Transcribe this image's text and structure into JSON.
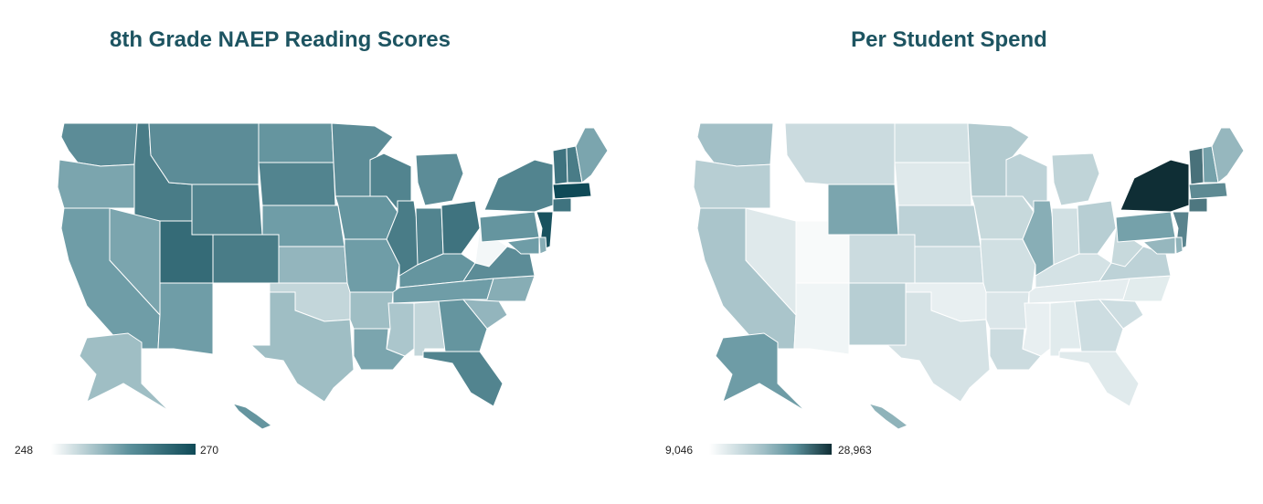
{
  "maps": [
    {
      "title": "8th Grade NAEP Reading Scores",
      "legend": {
        "min": "248",
        "max": "270",
        "low_color": "#ffffff",
        "high_color": "#0f4a57"
      },
      "states": {
        "WA": 262,
        "OR": 259,
        "CA": 260,
        "ID": 264,
        "NV": 259,
        "MT": 262,
        "WY": 263,
        "UT": 266,
        "AZ": 260,
        "NM": 248,
        "CO": 264,
        "ND": 261,
        "SD": 263,
        "NE": 260,
        "KS": 257,
        "OK": 253,
        "TX": 256,
        "MN": 262,
        "IA": 261,
        "MO": 260,
        "AR": 256,
        "LA": 259,
        "WI": 263,
        "IL": 264,
        "MI": 262,
        "IN": 263,
        "OH": 265,
        "KY": 261,
        "TN": 260,
        "MS": 255,
        "AL": 253,
        "GA": 261,
        "FL": 263,
        "SC": 257,
        "NC": 258,
        "VA": 262,
        "WV": 249,
        "PA": 261,
        "NY": 263,
        "VT": 265,
        "NH": 264,
        "ME": 259,
        "MA": 270,
        "CT": 265,
        "NJ": 269,
        "MD": 260,
        "DE": 258,
        "AK": 256,
        "HI": 261
      }
    },
    {
      "title": "Per Student Spend",
      "legend": {
        "min": "9,046",
        "max": "28,963",
        "low_color": "#ffffff",
        "high_color": "#0f2e35"
      },
      "states": {
        "WA": 16000,
        "OR": 14500,
        "CA": 15500,
        "ID": 9046,
        "NV": 11500,
        "MT": 13000,
        "WY": 19000,
        "UT": 9600,
        "AZ": 10200,
        "NM": 14500,
        "CO": 13000,
        "ND": 12500,
        "SD": 11500,
        "NE": 14000,
        "KS": 12800,
        "OK": 10800,
        "TX": 12200,
        "MN": 14800,
        "IA": 13300,
        "MO": 12500,
        "AR": 11800,
        "LA": 13000,
        "WI": 14000,
        "IL": 18000,
        "MI": 13800,
        "IN": 12500,
        "OH": 14500,
        "KY": 12300,
        "TN": 11000,
        "MS": 10800,
        "AL": 11300,
        "GA": 12800,
        "FL": 11400,
        "SC": 12800,
        "NC": 11200,
        "VA": 14000,
        "WV": 13300,
        "PA": 19500,
        "NY": 28963,
        "VT": 23500,
        "NH": 19500,
        "ME": 17000,
        "MA": 21500,
        "CT": 23000,
        "NJ": 22000,
        "MD": 17000,
        "DE": 17500,
        "AK": 20000,
        "HI": 17500
      }
    }
  ]
}
